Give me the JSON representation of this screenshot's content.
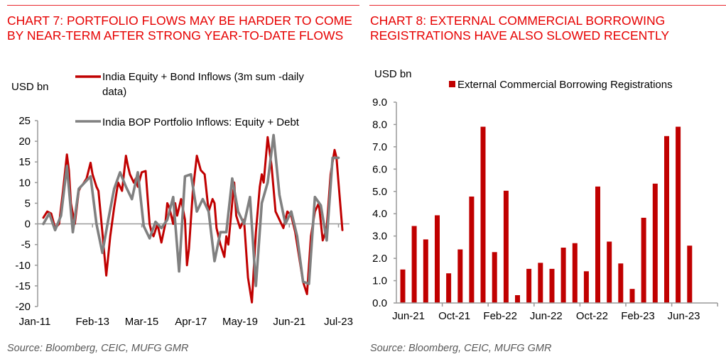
{
  "colors": {
    "accent": "#e60000",
    "rule": "#e8272d",
    "red_series": "#c00000",
    "grey_series": "#808080",
    "axis": "#999999"
  },
  "chart7": {
    "title_line1": "CHART 7: PORTFOLIO FLOWS MAY BE HARDER TO COME",
    "title_line2": "BY NEAR-TERM AFTER STRONG YEAR-TO-DATE FLOWS",
    "source": "Source: Bloomberg, CEIC, MUFG GMR"
  },
  "chart8": {
    "title_line1": "CHART 8: EXTERNAL COMMERCIAL BORROWING",
    "title_line2": "REGISTRATIONS HAVE ALSO SLOWED RECENTLY",
    "source": "Source: Bloomberg, CEIC, MUFG GMR"
  },
  "chart_data": [
    {
      "type": "line",
      "title": "CHART 7: PORTFOLIO FLOWS MAY BE HARDER TO COME BY NEAR-TERM AFTER STRONG YEAR-TO-DATE FLOWS",
      "ylabel": "USD bn",
      "xlabel": "",
      "ylim": [
        -20,
        25
      ],
      "yticks": [
        25,
        20,
        15,
        10,
        5,
        0,
        -5,
        -10,
        -15,
        -20
      ],
      "xlim_months": [
        0,
        152
      ],
      "xticks": [
        {
          "label": "Jan-11",
          "month": 0
        },
        {
          "label": "Feb-13",
          "month": 25
        },
        {
          "label": "Mar-15",
          "month": 50
        },
        {
          "label": "Apr-17",
          "month": 75
        },
        {
          "label": "May-19",
          "month": 100
        },
        {
          "label": "Jun-21",
          "month": 125
        },
        {
          "label": "Jul-23",
          "month": 150
        }
      ],
      "legend_position": "top",
      "series": [
        {
          "name": "India Equity + Bond Inflows (3m sum -daily",
          "name_line2": "data)",
          "color": "#c00000",
          "x_months": [
            0,
            2,
            4,
            6,
            8,
            10,
            12,
            13,
            14,
            16,
            18,
            19,
            20,
            22,
            24,
            25,
            27,
            28,
            30,
            32,
            34,
            36,
            37,
            38,
            40,
            42,
            43,
            44,
            46,
            47,
            48,
            50,
            52,
            54,
            55,
            56,
            58,
            60,
            62,
            63,
            64,
            66,
            67,
            68,
            70,
            72,
            73,
            74,
            76,
            78,
            80,
            82,
            84,
            86,
            87,
            88,
            90,
            92,
            93,
            94,
            96,
            97,
            98,
            100,
            102,
            104,
            106,
            108,
            110,
            111,
            112,
            114,
            116,
            118,
            120,
            122,
            124,
            126,
            128,
            130,
            132,
            134,
            136,
            138,
            140,
            142,
            144,
            146,
            148,
            149,
            150,
            152
          ],
          "values": [
            1.5,
            3,
            2.5,
            -1,
            0,
            8,
            16.8,
            13,
            5,
            0,
            8,
            9,
            9.5,
            11,
            14.8,
            12,
            9,
            8,
            -2,
            -12.5,
            -3,
            4,
            7,
            10,
            8,
            16.5,
            14,
            12,
            10,
            11,
            9,
            12.5,
            12.8,
            0,
            -2,
            -3,
            0,
            -4.5,
            0,
            5,
            4,
            0,
            5,
            2,
            6,
            1,
            -10,
            -6,
            8,
            16.5,
            13,
            12,
            3,
            6,
            5,
            -1,
            -5,
            -8,
            -3,
            -5,
            5,
            10,
            2,
            -1,
            1,
            -13,
            -19,
            -2,
            9,
            12,
            10,
            21,
            14,
            3,
            1,
            -1,
            3,
            2,
            -2,
            -8,
            -14,
            -17,
            -3,
            3,
            5,
            -4,
            -1,
            12,
            17.9,
            16,
            10,
            -1.5
          ]
        },
        {
          "name": "India BOP Portfolio Inflows:  Equity + Debt",
          "color": "#808080",
          "x_months": [
            0,
            3,
            6,
            9,
            12,
            15,
            18,
            21,
            24,
            27,
            30,
            33,
            36,
            39,
            42,
            45,
            48,
            51,
            54,
            57,
            60,
            63,
            66,
            69,
            72,
            75,
            78,
            81,
            84,
            87,
            90,
            93,
            96,
            99,
            102,
            105,
            108,
            111,
            114,
            117,
            120,
            123,
            126,
            129,
            132,
            135,
            138,
            141,
            144,
            147,
            150
          ],
          "values": [
            0,
            2.5,
            -1.5,
            2,
            14,
            -2,
            8.5,
            10,
            11.5,
            0,
            -7,
            1,
            8.5,
            12.5,
            9,
            6,
            12.5,
            -0.5,
            -3.5,
            0.5,
            -1,
            1,
            6.5,
            -11.5,
            11.5,
            12,
            3,
            6,
            3,
            -9,
            -2,
            -2,
            11,
            3,
            0,
            6.5,
            -15,
            5,
            10,
            21.5,
            7,
            0,
            3,
            -3,
            -14,
            -14.5,
            6.5,
            4.5,
            -4,
            16,
            16
          ]
        }
      ]
    },
    {
      "type": "bar",
      "title": "CHART 8: EXTERNAL COMMERCIAL BORROWING REGISTRATIONS HAVE ALSO SLOWED RECENTLY",
      "ylabel": "USD bn",
      "xlabel": "",
      "ylim": [
        0,
        9
      ],
      "yticks": [
        "9.0",
        "8.0",
        "7.0",
        "6.0",
        "5.0",
        "4.0",
        "3.0",
        "2.0",
        "1.0",
        "0.0"
      ],
      "legend_position": "top",
      "categories": [
        "Jun-21",
        "Jul-21",
        "Aug-21",
        "Sep-21",
        "Oct-21",
        "Nov-21",
        "Dec-21",
        "Jan-22",
        "Feb-22",
        "Mar-22",
        "Apr-22",
        "May-22",
        "Jun-22",
        "Jul-22",
        "Aug-22",
        "Sep-22",
        "Oct-22",
        "Nov-22",
        "Dec-22",
        "Jan-23",
        "Feb-23",
        "Mar-23",
        "Apr-23",
        "May-23",
        "Jun-23",
        "Jul-23"
      ],
      "xtick_labels": [
        "Jun-21",
        "Oct-21",
        "Feb-22",
        "Jun-22",
        "Oct-22",
        "Feb-23",
        "Jun-23"
      ],
      "xtick_every": 4,
      "series": [
        {
          "name": "External Commercial Borrowing Registrations",
          "color": "#c00000",
          "values": [
            1.5,
            3.45,
            2.85,
            3.93,
            1.33,
            2.4,
            4.77,
            7.9,
            2.28,
            5.03,
            0.35,
            1.53,
            1.8,
            1.53,
            2.48,
            2.68,
            1.42,
            5.22,
            2.75,
            1.77,
            0.63,
            3.82,
            5.35,
            7.48,
            7.9,
            2.57
          ]
        }
      ]
    }
  ]
}
